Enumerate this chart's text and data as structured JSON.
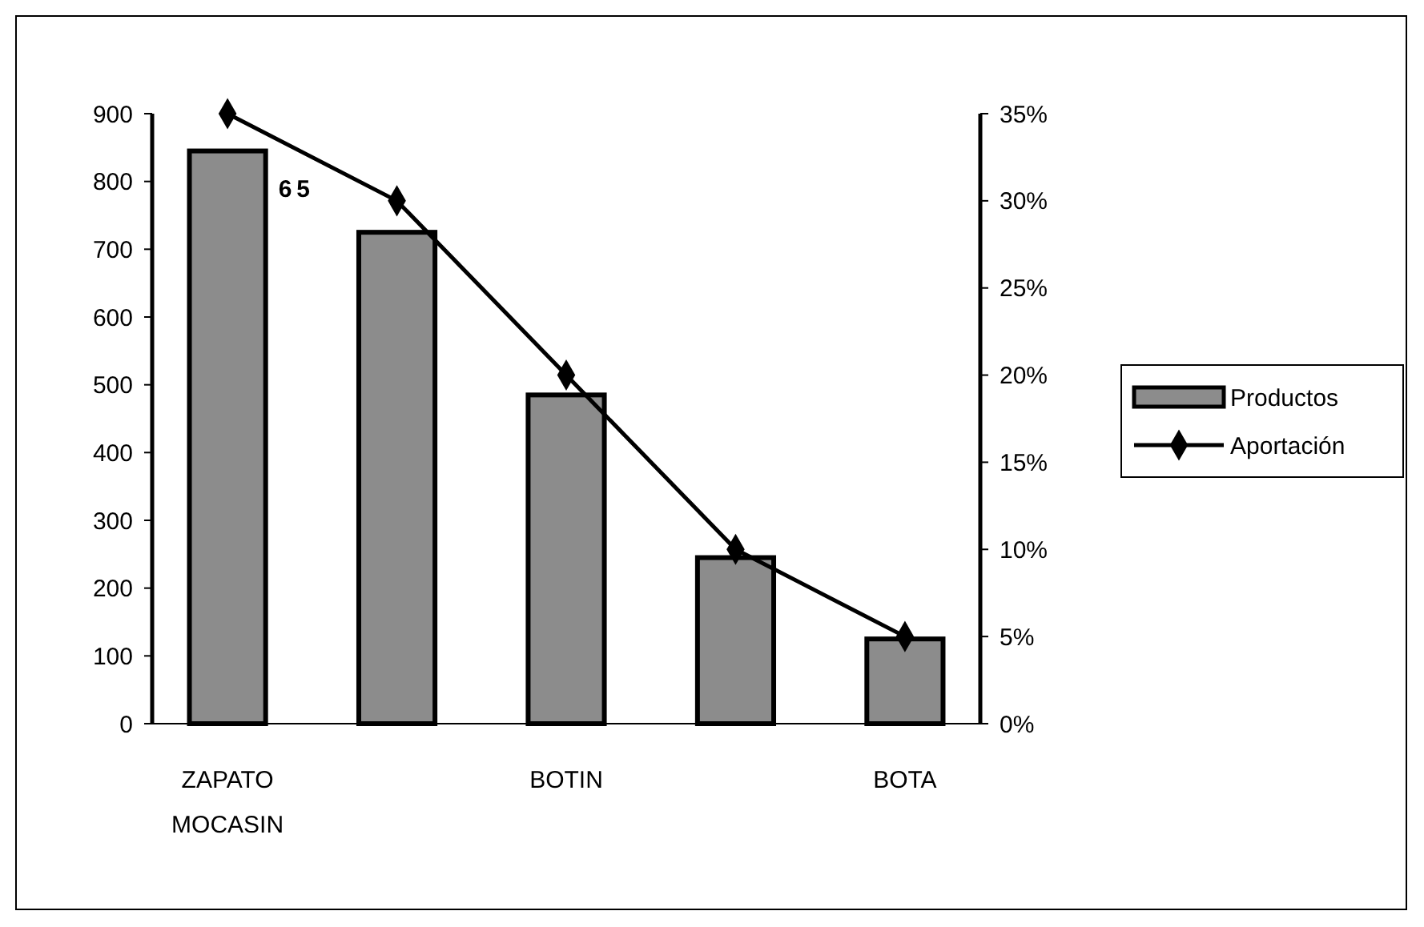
{
  "chart_data": {
    "type": "bar",
    "categories": [
      "ZAPATO MOCASIN",
      null,
      "BOTIN",
      null,
      "BOTA"
    ],
    "series": [
      {
        "name": "Productos",
        "color": "#8c8c8c",
        "values": [
          845,
          725,
          485,
          245,
          125
        ]
      },
      {
        "name": "Aportación",
        "type": "line",
        "axis": "y2",
        "color": "#000000",
        "marker": "diamond",
        "values": [
          35,
          30,
          20,
          10,
          5
        ]
      }
    ],
    "ylim": [
      0,
      900
    ],
    "yticks": [
      0,
      100,
      200,
      300,
      400,
      500,
      600,
      700,
      800,
      900
    ],
    "y2lim": [
      0,
      35
    ],
    "y2ticks": [
      {
        "value": 0,
        "label": "0%"
      },
      {
        "value": 5,
        "label": "5%"
      },
      {
        "value": 10,
        "label": "10%"
      },
      {
        "value": 15,
        "label": "15%"
      },
      {
        "value": 20,
        "label": "20%"
      },
      {
        "value": 25,
        "label": "25%"
      },
      {
        "value": 30,
        "label": "30%"
      },
      {
        "value": 35,
        "label": "35%"
      }
    ],
    "annotations": [
      "65"
    ],
    "legend": "right",
    "grid": false
  }
}
